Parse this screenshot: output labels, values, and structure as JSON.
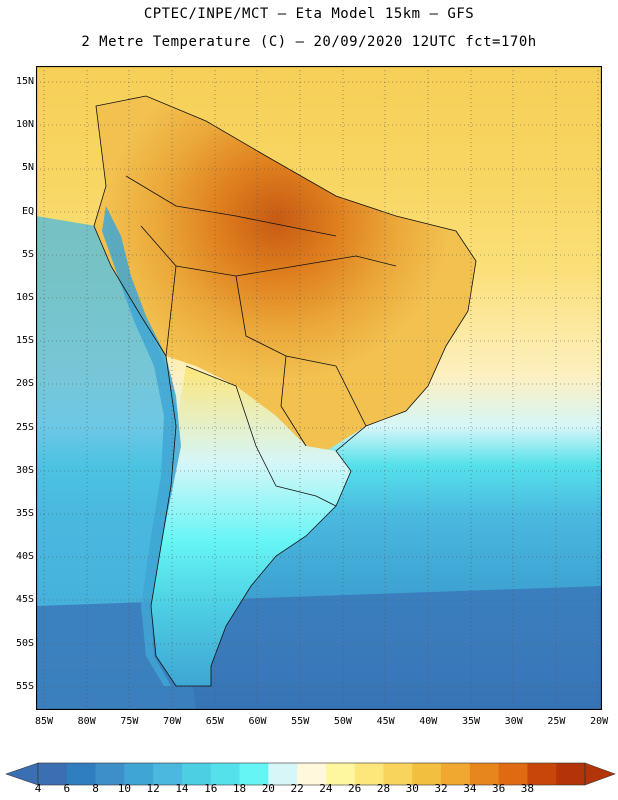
{
  "header": {
    "line1": "CPTEC/INPE/MCT –  Eta Model 15km – GFS",
    "line2": "2 Metre Temperature (C) – 20/09/2020 12UTC fct=170h"
  },
  "map": {
    "lat_labels": [
      "15N",
      "10N",
      "5N",
      "EQ",
      "5S",
      "10S",
      "15S",
      "20S",
      "25S",
      "30S",
      "35S",
      "40S",
      "45S",
      "50S",
      "55S"
    ],
    "lon_labels": [
      "85W",
      "80W",
      "75W",
      "70W",
      "65W",
      "60W",
      "55W",
      "50W",
      "45W",
      "40W",
      "35W",
      "30W",
      "25W",
      "20W"
    ],
    "colors": {
      "frame": "#000000",
      "gridline": "#555555",
      "boundary": "#111111"
    }
  },
  "colorbar": {
    "ticks": [
      "4",
      "6",
      "8",
      "10",
      "12",
      "14",
      "16",
      "18",
      "20",
      "22",
      "24",
      "26",
      "28",
      "30",
      "32",
      "34",
      "36",
      "38"
    ],
    "colors": [
      "#3a6fb3",
      "#2f7ec0",
      "#3c8fc9",
      "#3fa6d4",
      "#4ab8df",
      "#4dcfe3",
      "#55e1eb",
      "#66f5f5",
      "#d6f6f8",
      "#fff8dc",
      "#fff7a0",
      "#fde67a",
      "#f9d45c",
      "#f3bf3f",
      "#f0a830",
      "#e8861e",
      "#df6a12",
      "#c8460a",
      "#b23408"
    ],
    "under_color": "#3a6fb3",
    "over_color": "#b23408"
  }
}
